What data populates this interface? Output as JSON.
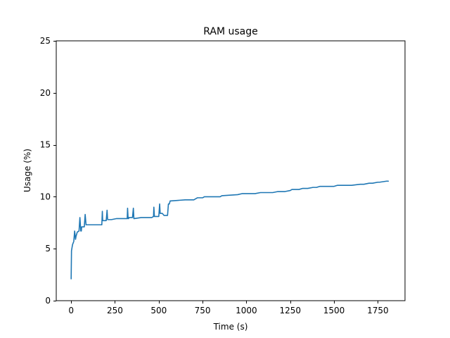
{
  "chart_data": {
    "type": "line",
    "title": "RAM usage",
    "xlabel": "Time (s)",
    "ylabel": "Usage (%)",
    "xlim": [
      -85,
      1905
    ],
    "ylim": [
      0,
      25
    ],
    "x_ticks": [
      0,
      250,
      500,
      750,
      1000,
      1250,
      1500,
      1750
    ],
    "y_ticks": [
      0,
      5,
      10,
      15,
      20,
      25
    ],
    "grid": false,
    "legend": "none",
    "series": [
      {
        "color": "#1f77b4",
        "x": [
          0,
          2,
          8,
          15,
          20,
          25,
          28,
          35,
          45,
          50,
          55,
          58,
          60,
          75,
          80,
          85,
          88,
          90,
          120,
          175,
          178,
          180,
          182,
          200,
          205,
          208,
          210,
          230,
          260,
          320,
          322,
          325,
          328,
          330,
          350,
          355,
          358,
          360,
          400,
          460,
          470,
          472,
          475,
          478,
          480,
          500,
          505,
          508,
          510,
          520,
          530,
          550,
          555,
          560,
          565,
          570,
          650,
          700,
          720,
          750,
          760,
          850,
          860,
          950,
          975,
          1050,
          1080,
          1150,
          1180,
          1200,
          1220,
          1250,
          1260,
          1300,
          1320,
          1350,
          1380,
          1400,
          1420,
          1500,
          1520,
          1580,
          1600,
          1650,
          1670,
          1700,
          1720,
          1750,
          1760,
          1800,
          1810
        ],
        "y": [
          2.1,
          4.8,
          5.4,
          5.7,
          6.7,
          5.9,
          6.2,
          6.6,
          6.7,
          8.0,
          6.7,
          6.7,
          7.1,
          7.1,
          8.3,
          7.3,
          7.3,
          7.3,
          7.3,
          7.3,
          8.6,
          7.7,
          7.7,
          7.7,
          8.7,
          7.8,
          7.8,
          7.8,
          7.9,
          7.9,
          8.9,
          7.9,
          7.9,
          8.0,
          8.0,
          8.9,
          7.9,
          7.9,
          8.0,
          8.0,
          8.1,
          9.0,
          8.1,
          8.1,
          8.1,
          8.1,
          9.3,
          8.4,
          8.4,
          8.4,
          8.2,
          8.2,
          9.3,
          9.3,
          9.6,
          9.6,
          9.7,
          9.7,
          9.9,
          9.9,
          10.0,
          10.0,
          10.1,
          10.2,
          10.3,
          10.3,
          10.4,
          10.4,
          10.5,
          10.5,
          10.5,
          10.6,
          10.7,
          10.7,
          10.8,
          10.8,
          10.9,
          10.9,
          11.0,
          11.0,
          11.1,
          11.1,
          11.1,
          11.2,
          11.2,
          11.3,
          11.3,
          11.4,
          11.4,
          11.5,
          11.5
        ]
      }
    ]
  }
}
